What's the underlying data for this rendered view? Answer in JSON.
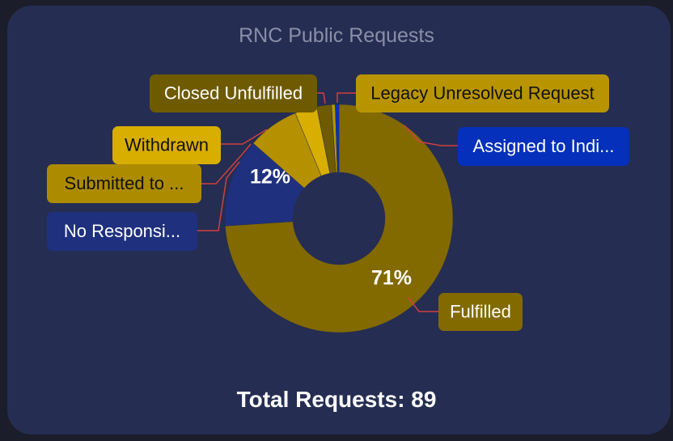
{
  "chart_data": {
    "type": "pie",
    "title": "RNC Public Requests",
    "slices": [
      {
        "label": "Fulfilled",
        "display": "Fulfilled",
        "percent": 71,
        "color": "#826a00",
        "label_bg": "#826a00",
        "label_fg": "#ffffff",
        "pct_label": "71%"
      },
      {
        "label": "No Responsive Records",
        "display": "No Responsi...",
        "percent": 12,
        "color": "#1f307f",
        "label_bg": "#1f307f",
        "label_fg": "#ffffff",
        "pct_label": "12%"
      },
      {
        "label": "Submitted to ...",
        "display": "Submitted to ...",
        "percent": 7,
        "color": "#b59000",
        "label_bg": "#ad8b00",
        "label_fg": "#111111",
        "pct_label": ""
      },
      {
        "label": "Withdrawn",
        "display": "Withdrawn",
        "percent": 3,
        "color": "#d8ae00",
        "label_bg": "#d8ae00",
        "label_fg": "#111111",
        "pct_label": ""
      },
      {
        "label": "Closed Unfulfilled",
        "display": "Closed Unfulfilled",
        "percent": 2,
        "color": "#6e5a00",
        "label_bg": "#6e5a00",
        "label_fg": "#ffffff",
        "pct_label": ""
      },
      {
        "label": "Legacy Unresolved Request",
        "display": "Legacy Unresolved Request",
        "percent": 0.5,
        "color": "#b89500",
        "label_bg": "#b89500",
        "label_fg": "#111111",
        "pct_label": ""
      },
      {
        "label": "Assigned to Individual",
        "display": "Assigned to Indi...",
        "percent": 0.5,
        "color": "#0033bb",
        "label_bg": "#0530bb",
        "label_fg": "#ffffff",
        "pct_label": ""
      }
    ]
  },
  "footer": {
    "total_label": "Total Requests: 89"
  },
  "colors": {
    "card": "#252d52",
    "leader_line": "#d04040"
  }
}
